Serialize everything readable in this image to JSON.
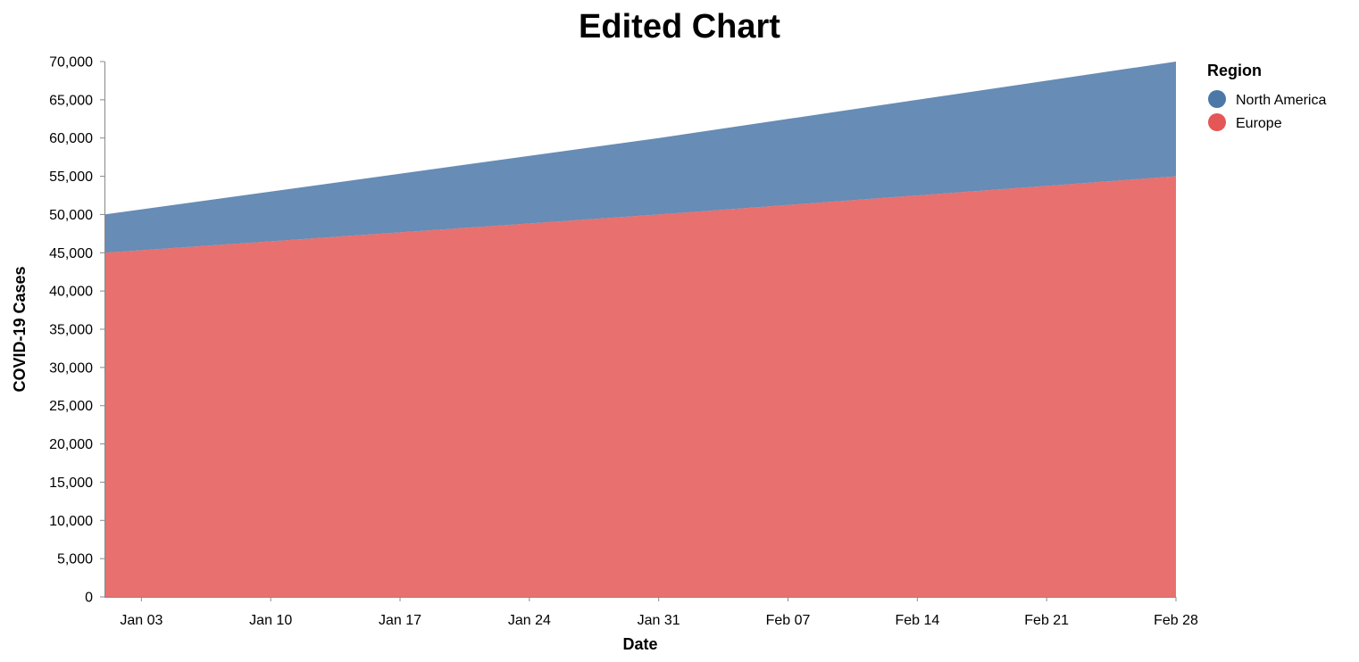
{
  "chart_data": {
    "type": "area",
    "stacked": true,
    "title": "Edited Chart",
    "xlabel": "Date",
    "ylabel": "COVID-19 Cases",
    "x": [
      "2021-01-01",
      "2021-01-31",
      "2021-02-28"
    ],
    "series": [
      {
        "name": "Europe",
        "color": "#e45756",
        "values": [
          45000,
          50000,
          55000
        ]
      },
      {
        "name": "North America",
        "color": "#4c78a8",
        "values": [
          5000,
          10000,
          15000
        ]
      }
    ],
    "stack_order": [
      "Europe",
      "North America"
    ],
    "fill_opacity": 0.85,
    "ylim": [
      0,
      70000
    ],
    "xlim": [
      "2021-01-01",
      "2021-02-28"
    ],
    "x_ticks": [
      "Jan 03",
      "Jan 10",
      "Jan 17",
      "Jan 24",
      "Jan 31",
      "Feb 07",
      "Feb 14",
      "Feb 21",
      "Feb 28"
    ],
    "x_tick_dates": [
      "2021-01-03",
      "2021-01-10",
      "2021-01-17",
      "2021-01-24",
      "2021-01-31",
      "2021-02-07",
      "2021-02-14",
      "2021-02-21",
      "2021-02-28"
    ],
    "y_ticks": [
      0,
      5000,
      10000,
      15000,
      20000,
      25000,
      30000,
      35000,
      40000,
      45000,
      50000,
      55000,
      60000,
      65000,
      70000
    ],
    "y_tick_labels": [
      "0",
      "5,000",
      "10,000",
      "15,000",
      "20,000",
      "25,000",
      "30,000",
      "35,000",
      "40,000",
      "45,000",
      "50,000",
      "55,000",
      "60,000",
      "65,000",
      "70,000"
    ],
    "grid": false,
    "legend": {
      "title": "Region",
      "placement": "right",
      "entries": [
        {
          "label": "North America",
          "color": "#4c78a8"
        },
        {
          "label": "Europe",
          "color": "#e45756"
        }
      ]
    }
  }
}
